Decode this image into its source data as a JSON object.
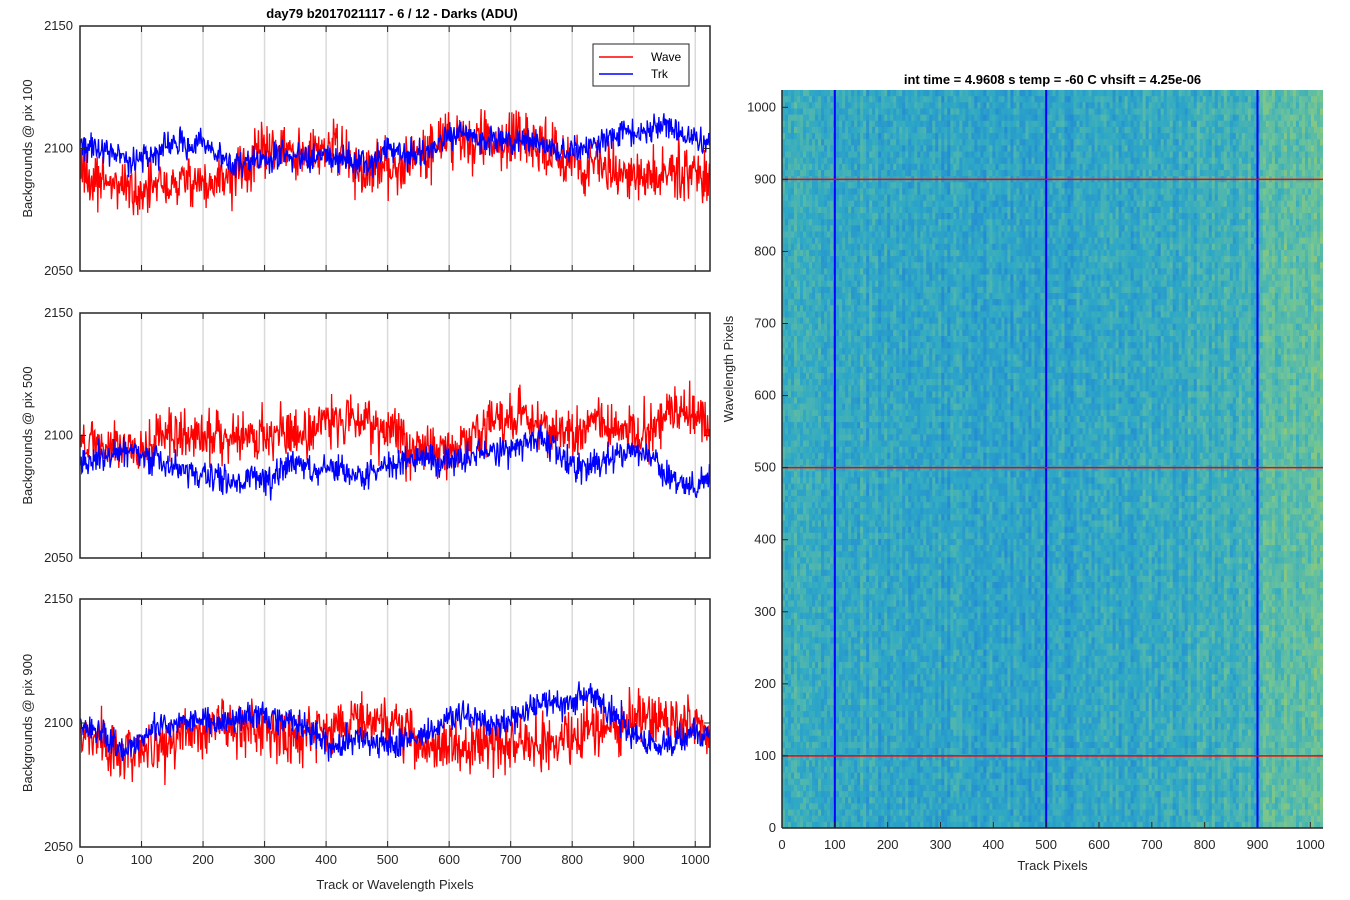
{
  "figure_title": "day79 b2017021117 - 6 / 12 - Darks (ADU)",
  "chart_data": [
    {
      "type": "line",
      "ylabel": "Backgrounds @ pix 100",
      "xlabel": "",
      "xlim": [
        0,
        1024
      ],
      "ylim": [
        2050,
        2150
      ],
      "xticks": [
        "0",
        "100",
        "200",
        "300",
        "400",
        "500",
        "600",
        "700",
        "800",
        "900",
        "1000"
      ],
      "yticks": [
        "2050",
        "2100",
        "2150"
      ],
      "grid": "x",
      "legend": "top-right",
      "series": [
        {
          "name": "Wave",
          "color": "#ff0000",
          "mean": 2091,
          "amplitude": 14,
          "noise": 11,
          "seed": 11
        },
        {
          "name": "Trk",
          "color": "#0000ff",
          "mean": 2101,
          "amplitude": 9,
          "noise": 6,
          "seed": 23
        }
      ]
    },
    {
      "type": "line",
      "ylabel": "Backgrounds @ pix 500",
      "xlabel": "",
      "xlim": [
        0,
        1024
      ],
      "ylim": [
        2050,
        2150
      ],
      "xticks": [
        "0",
        "100",
        "200",
        "300",
        "400",
        "500",
        "600",
        "700",
        "800",
        "900",
        "1000"
      ],
      "yticks": [
        "2050",
        "2100",
        "2150"
      ],
      "grid": "x",
      "series": [
        {
          "name": "Wave",
          "color": "#ff0000",
          "mean": 2100,
          "amplitude": 10,
          "noise": 11,
          "seed": 37
        },
        {
          "name": "Trk",
          "color": "#0000ff",
          "mean": 2088,
          "amplitude": 11,
          "noise": 6,
          "seed": 41
        }
      ]
    },
    {
      "type": "line",
      "ylabel": "Backgrounds @ pix 900",
      "xlabel": "Track or Wavelength Pixels",
      "xlim": [
        0,
        1024
      ],
      "ylim": [
        2050,
        2150
      ],
      "xticks": [
        "0",
        "100",
        "200",
        "300",
        "400",
        "500",
        "600",
        "700",
        "800",
        "900",
        "1000"
      ],
      "yticks": [
        "2050",
        "2100",
        "2150"
      ],
      "grid": "x",
      "series": [
        {
          "name": "Wave",
          "color": "#ff0000",
          "mean": 2097,
          "amplitude": 10,
          "noise": 11,
          "seed": 53
        },
        {
          "name": "Trk",
          "color": "#0000ff",
          "mean": 2100,
          "amplitude": 11,
          "noise": 6,
          "seed": 67
        }
      ]
    },
    {
      "type": "heatmap",
      "title": "int time = 4.9608 s    temp = -60 C    vhsift = 4.25e-06",
      "xlabel": "Track Pixels",
      "ylabel": "Wavelength Pixels",
      "xlim": [
        0,
        1024
      ],
      "ylim": [
        0,
        1024
      ],
      "xticks": [
        "0",
        "100",
        "200",
        "300",
        "400",
        "500",
        "600",
        "700",
        "800",
        "900",
        "1000"
      ],
      "yticks": [
        "0",
        "100",
        "200",
        "300",
        "400",
        "500",
        "600",
        "700",
        "800",
        "900",
        "1000"
      ],
      "colormap": [
        "#1e7fd8",
        "#2ea8c6",
        "#6cc39a",
        "#b8cf55"
      ],
      "vertical_lines": {
        "x": [
          100,
          500,
          900
        ],
        "color": "#0000ff"
      },
      "horizontal_lines": {
        "y": [
          100,
          500,
          900
        ],
        "color": "#ff0000"
      }
    }
  ]
}
